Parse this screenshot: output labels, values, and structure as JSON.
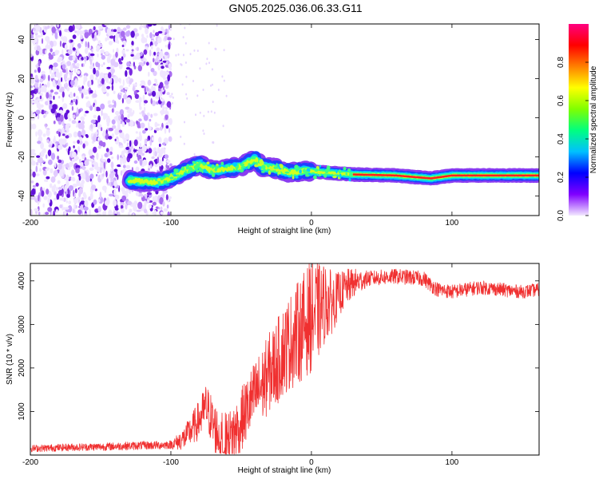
{
  "title": "GN05.2025.036.06.33.G11",
  "chart_data": [
    {
      "type": "heatmap",
      "name": "spectrogram",
      "xlabel": "Height of straight line (km)",
      "ylabel": "Frequency (Hz)",
      "xlim": [
        -200,
        162
      ],
      "ylim": [
        -50,
        48
      ],
      "xticks": [
        -200,
        -100,
        0,
        100
      ],
      "yticks": [
        -40,
        -20,
        0,
        20,
        40
      ],
      "colorbar": {
        "label": "Normalized spectral amplitude",
        "range": [
          0,
          1
        ],
        "ticks": [
          "0.0",
          "0.2",
          "0.4",
          "0.6",
          "0.8"
        ],
        "colors": [
          "#f2e8ff",
          "#8000ff",
          "#0000ff",
          "#00c0ff",
          "#00ff80",
          "#80ff00",
          "#ffff00",
          "#ff8000",
          "#ff0000",
          "#ff0080"
        ]
      },
      "ridge": [
        {
          "x": -130,
          "y": -32
        },
        {
          "x": -110,
          "y": -33
        },
        {
          "x": -100,
          "y": -31
        },
        {
          "x": -90,
          "y": -27
        },
        {
          "x": -80,
          "y": -24
        },
        {
          "x": -70,
          "y": -27
        },
        {
          "x": -60,
          "y": -26
        },
        {
          "x": -50,
          "y": -25
        },
        {
          "x": -40,
          "y": -21
        },
        {
          "x": -35,
          "y": -25
        },
        {
          "x": -25,
          "y": -26
        },
        {
          "x": -15,
          "y": -28
        },
        {
          "x": -5,
          "y": -27
        },
        {
          "x": 10,
          "y": -28
        },
        {
          "x": 30,
          "y": -29
        },
        {
          "x": 60,
          "y": -29.5
        },
        {
          "x": 85,
          "y": -31
        },
        {
          "x": 100,
          "y": -29.5
        },
        {
          "x": 162,
          "y": -29.5
        }
      ],
      "noise_region": [
        -200,
        -100
      ]
    },
    {
      "type": "line",
      "name": "snr",
      "xlabel": "Height of straight line (km)",
      "ylabel": "SNR (10 * v/v)",
      "xlim": [
        -200,
        162
      ],
      "ylim": [
        0,
        4400
      ],
      "xticks": [
        -200,
        -100,
        0,
        100
      ],
      "yticks": [
        1000,
        2000,
        3000,
        4000
      ],
      "line_color": "#f03030",
      "series": [
        {
          "x": [
            -200,
            -190,
            -180,
            -170,
            -160,
            -150,
            -140,
            -130,
            -120,
            -110,
            -100,
            -95,
            -90,
            -85,
            -80,
            -75,
            -72,
            -70,
            -65,
            -60,
            -55,
            -50,
            -45,
            -40,
            -35,
            -30,
            -25,
            -20,
            -15,
            -10,
            -5,
            0,
            5,
            10,
            15,
            20,
            25,
            30,
            35,
            40,
            50,
            60,
            70,
            80,
            85,
            90,
            100,
            110,
            120,
            130,
            140,
            150,
            162
          ],
          "values": [
            150,
            160,
            170,
            180,
            185,
            190,
            200,
            210,
            220,
            225,
            240,
            300,
            400,
            600,
            800,
            1100,
            900,
            700,
            400,
            300,
            500,
            800,
            1100,
            1400,
            1600,
            1900,
            2100,
            2400,
            2600,
            2800,
            3000,
            3200,
            3300,
            3500,
            3500,
            3700,
            3850,
            3950,
            4000,
            4050,
            4080,
            4100,
            4080,
            4050,
            3900,
            3800,
            3750,
            3800,
            3850,
            3820,
            3780,
            3750,
            3800
          ]
        }
      ],
      "noise": [
        {
          "x": -200,
          "amplitude": 80
        },
        {
          "x": -100,
          "amplitude": 100
        },
        {
          "x": -75,
          "amplitude": 550
        },
        {
          "x": -40,
          "amplitude": 800
        },
        {
          "x": 0,
          "amplitude": 1300
        },
        {
          "x": 20,
          "amplitude": 500
        },
        {
          "x": 40,
          "amplitude": 180
        },
        {
          "x": 162,
          "amplitude": 150
        }
      ]
    }
  ]
}
